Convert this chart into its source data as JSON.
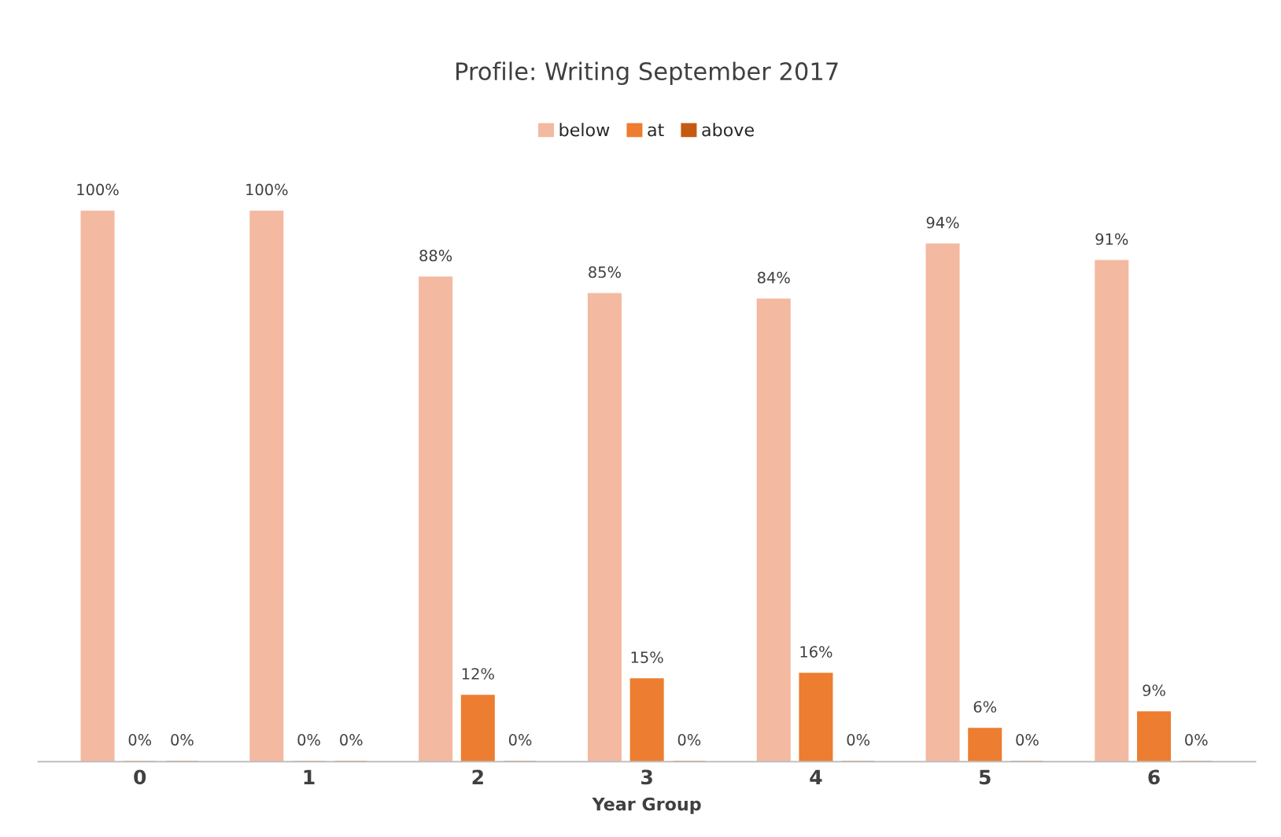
{
  "chart_data": {
    "type": "bar",
    "title": "Profile: Writing September 2017",
    "xlabel": "Year Group",
    "categories": [
      "0",
      "1",
      "2",
      "3",
      "4",
      "5",
      "6"
    ],
    "legend": "top",
    "grid": false,
    "series": [
      {
        "name": "below",
        "color": "#f4b9a1",
        "values": [
          100,
          100,
          88,
          85,
          84,
          94,
          91
        ],
        "value_labels": [
          "100%",
          "100%",
          "88%",
          "85%",
          "84%",
          "94%",
          "91%"
        ]
      },
      {
        "name": "at",
        "color": "#ed7d31",
        "values": [
          0,
          0,
          12,
          15,
          16,
          6,
          9
        ],
        "value_labels": [
          "0%",
          "0%",
          "12%",
          "15%",
          "16%",
          "6%",
          "9%"
        ]
      },
      {
        "name": "above",
        "color": "#c55a11",
        "values": [
          0,
          0,
          0,
          0,
          0,
          0,
          0
        ],
        "value_labels": [
          "0%",
          "0%",
          "0%",
          "0%",
          "0%",
          "0%",
          "0%"
        ]
      }
    ]
  }
}
